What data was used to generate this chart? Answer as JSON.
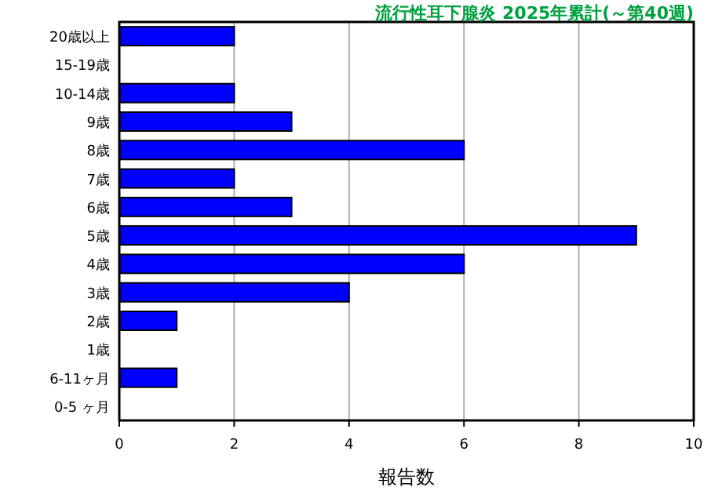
{
  "chart_data": {
    "type": "bar",
    "orientation": "horizontal",
    "title": "流行性耳下腺炎 2025年累計(～第40週)",
    "xlabel": "報告数",
    "categories": [
      "20歳以上",
      "15-19歳",
      "10-14歳",
      "9歳",
      "8歳",
      "7歳",
      "6歳",
      "5歳",
      "4歳",
      "3歳",
      "2歳",
      "1歳",
      "6-11ヶ月",
      "0-5 ヶ月"
    ],
    "values": [
      2,
      0,
      2,
      3,
      6,
      2,
      3,
      9,
      6,
      4,
      1,
      0,
      1,
      0
    ],
    "color": "#0000ff",
    "xlim": [
      0,
      10
    ],
    "xticks": [
      0,
      2,
      4,
      6,
      8,
      10
    ],
    "grid": "x"
  }
}
